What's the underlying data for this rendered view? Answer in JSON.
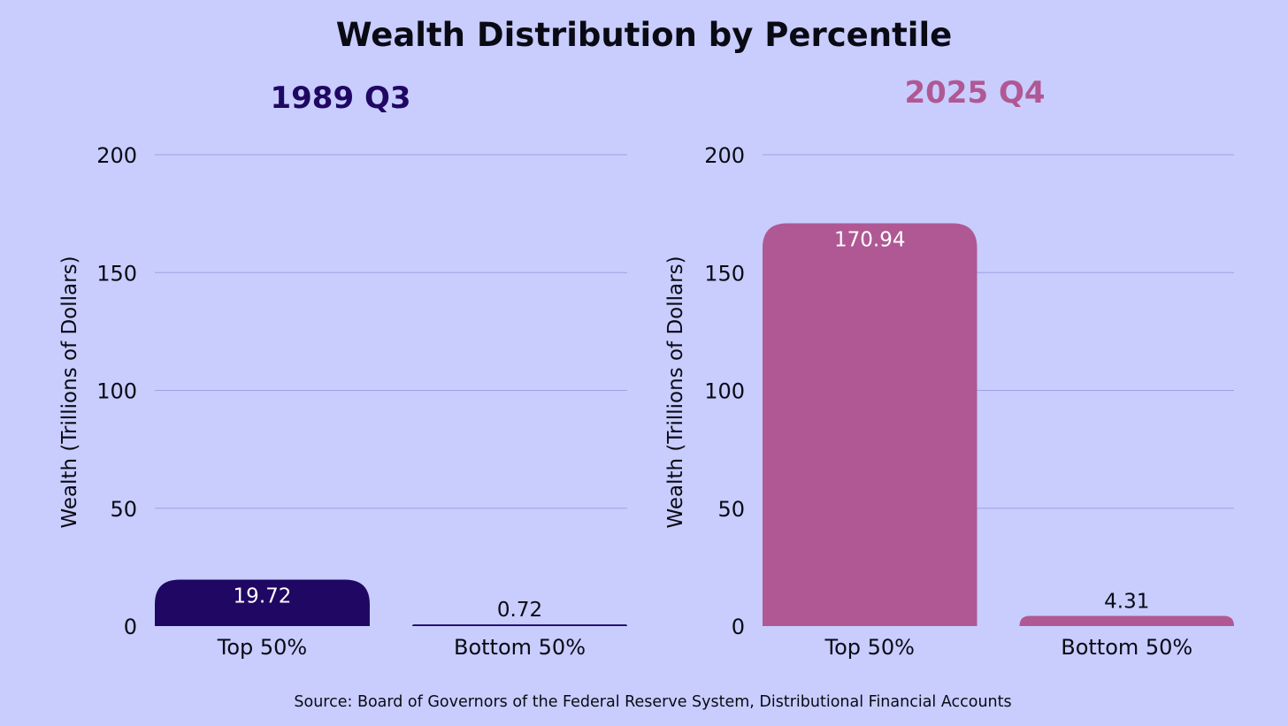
{
  "page": {
    "title": "Wealth Distribution by Percentile",
    "source": "Source: Board of Governors of the Federal Reserve System, Distributional Financial Accounts"
  },
  "colors": {
    "background": "#c8cdfe",
    "gridline": "#9da3e3",
    "text": "#0a0a14",
    "panel_1989": "#1f0763",
    "panel_2025": "#b05894"
  },
  "chart_data": [
    {
      "type": "bar",
      "title": "1989 Q3",
      "xlabel": "",
      "ylabel": "Wealth (Trillions of Dollars)",
      "categories": [
        "Top 50%",
        "Bottom 50%"
      ],
      "values": [
        19.72,
        0.72
      ],
      "data_labels": [
        "19.72",
        "0.72"
      ],
      "ylim": [
        0,
        200
      ],
      "yticks": [
        0,
        50,
        100,
        150,
        200
      ],
      "grid": true,
      "color": "#1f0763"
    },
    {
      "type": "bar",
      "title": "2025 Q4",
      "xlabel": "",
      "ylabel": "Wealth (Trillions of Dollars)",
      "categories": [
        "Top 50%",
        "Bottom 50%"
      ],
      "values": [
        170.94,
        4.31
      ],
      "data_labels": [
        "170.94",
        "4.31"
      ],
      "ylim": [
        0,
        200
      ],
      "yticks": [
        0,
        50,
        100,
        150,
        200
      ],
      "grid": true,
      "color": "#b05894"
    }
  ]
}
